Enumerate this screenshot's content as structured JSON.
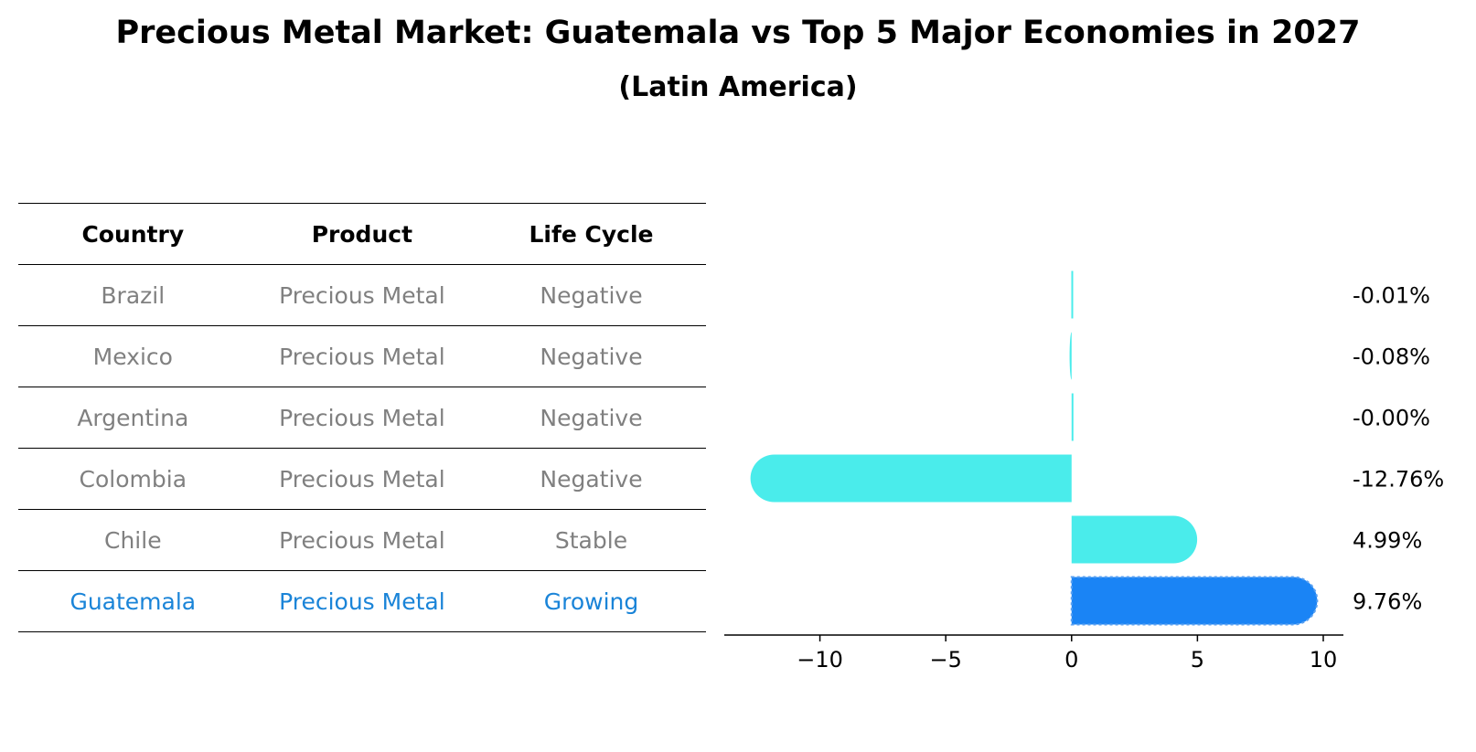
{
  "chart_data": {
    "type": "bar",
    "orientation": "horizontal",
    "title": "Precious Metal Market: Guatemala vs Top 5 Major Economies in 2027",
    "subtitle": "(Latin America)",
    "categories": [
      "Brazil",
      "Mexico",
      "Argentina",
      "Colombia",
      "Chile",
      "Guatemala"
    ],
    "values": [
      -0.01,
      -0.08,
      -0.0,
      -12.76,
      4.99,
      9.76
    ],
    "value_labels": [
      "-0.01%",
      "-0.08%",
      "-0.00%",
      "-12.76%",
      "4.99%",
      "9.76%"
    ],
    "highlight": "Guatemala",
    "xlim": [
      -13.8,
      10.8
    ],
    "xticks": [
      -10,
      -5,
      0,
      5,
      10
    ],
    "xtick_labels": [
      "−10",
      "−5",
      "0",
      "5",
      "10"
    ],
    "colors": {
      "default": "#4aeceb",
      "highlight": "#1a84f5"
    }
  },
  "table": {
    "headers": [
      "Country",
      "Product",
      "Life Cycle"
    ],
    "rows": [
      [
        "Brazil",
        "Precious Metal",
        "Negative"
      ],
      [
        "Mexico",
        "Precious Metal",
        "Negative"
      ],
      [
        "Argentina",
        "Precious Metal",
        "Negative"
      ],
      [
        "Colombia",
        "Precious Metal",
        "Negative"
      ],
      [
        "Chile",
        "Precious Metal",
        "Stable"
      ],
      [
        "Guatemala",
        "Precious Metal",
        "Growing"
      ]
    ]
  }
}
